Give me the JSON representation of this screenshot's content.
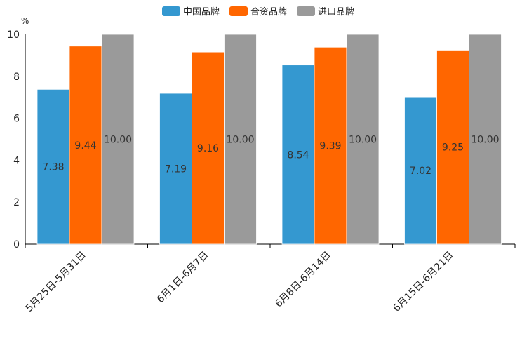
{
  "chart_data": {
    "type": "bar",
    "title": "",
    "xlabel": "",
    "ylabel": "",
    "unit": "%",
    "ylim": [
      0,
      10
    ],
    "yticks": [
      "0",
      "2",
      "4",
      "6",
      "8",
      "10"
    ],
    "categories": [
      "5月25日-5月31日",
      "6月1日-6月7日",
      "6月8日-6月14日",
      "6月15日-6月21日"
    ],
    "series": [
      {
        "name": "中国品牌",
        "color": "#3498d0",
        "values": [
          7.38,
          7.19,
          8.54,
          7.02
        ],
        "labels": [
          "7.38",
          "7.19",
          "8.54",
          "7.02"
        ]
      },
      {
        "name": "合资品牌",
        "color": "#ff6600",
        "values": [
          9.44,
          9.16,
          9.39,
          9.25
        ],
        "labels": [
          "9.44",
          "9.16",
          "9.39",
          "9.25"
        ]
      },
      {
        "name": "进口品牌",
        "color": "#9a9a9a",
        "values": [
          10.0,
          10.0,
          10.0,
          10.0
        ],
        "labels": [
          "10.00",
          "10.00",
          "10.00",
          "10.00"
        ]
      }
    ],
    "legend_position": "top-center",
    "grid": false
  }
}
